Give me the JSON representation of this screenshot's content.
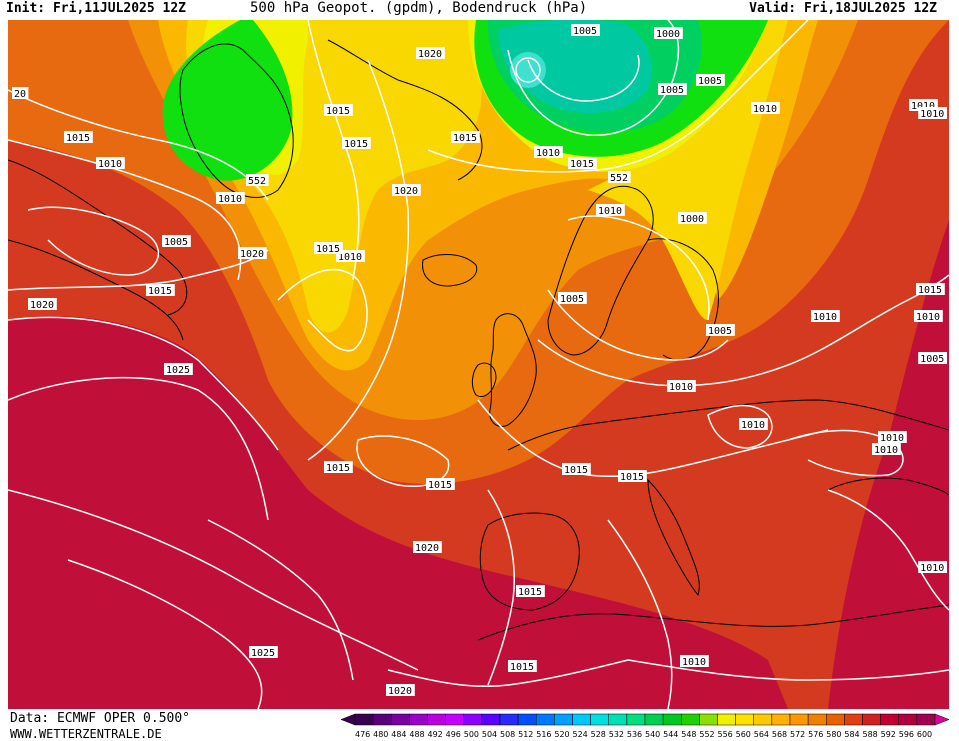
{
  "header": {
    "init": "Init: Fri,11JUL2025 12Z",
    "title": "500 hPa Geopot. (gpdm), Bodendruck (hPa)",
    "valid": "Valid: Fri,18JUL2025 12Z"
  },
  "footer": {
    "data_source": "Data: ECMWF OPER 0.500°",
    "website": "WWW.WETTERZENTRALE.DE"
  },
  "colorbar": {
    "levels": [
      "476",
      "480",
      "484",
      "488",
      "492",
      "496",
      "500",
      "504",
      "508",
      "512",
      "516",
      "520",
      "524",
      "528",
      "532",
      "536",
      "540",
      "544",
      "548",
      "552",
      "556",
      "560",
      "564",
      "568",
      "572",
      "576",
      "580",
      "584",
      "588",
      "592",
      "596",
      "600"
    ],
    "colors": [
      "#3a0050",
      "#5a007a",
      "#7a00a0",
      "#9a00c8",
      "#b800e0",
      "#c400ff",
      "#8c00ff",
      "#5a00ff",
      "#2828ff",
      "#0050ff",
      "#0078ff",
      "#00a0ff",
      "#00c8ff",
      "#00e0e0",
      "#00e0b0",
      "#00e080",
      "#00d050",
      "#00c820",
      "#20d000",
      "#8ce000",
      "#f0f000",
      "#ffe000",
      "#ffc800",
      "#ffb000",
      "#ff9800",
      "#f08000",
      "#e86000",
      "#e04010",
      "#d02020",
      "#c00030",
      "#b00040",
      "#a00050"
    ]
  },
  "map": {
    "colors": {
      "h600": "#a8003a",
      "h592": "#c0103a",
      "h584": "#d43a20",
      "h576": "#e86a10",
      "h568": "#f29008",
      "h560": "#fbb800",
      "h556": "#f8d800",
      "h552": "#f0f000",
      "h548": "#10e010",
      "h544": "#00d060",
      "h540": "#00c8a0",
      "h536": "#40e0d0",
      "isobar": "#ffffff",
      "coast": "#000000"
    },
    "isobar_labels": [
      {
        "t": "20"
      },
      {
        "t": "1015"
      },
      {
        "t": "1010"
      },
      {
        "t": "1020"
      },
      {
        "t": "1015"
      },
      {
        "t": "1015"
      },
      {
        "t": "552"
      },
      {
        "t": "1010"
      },
      {
        "t": "1020"
      },
      {
        "t": "1015"
      },
      {
        "t": "1005"
      },
      {
        "t": "1010"
      },
      {
        "t": "1020"
      },
      {
        "t": "1015"
      },
      {
        "t": "1005"
      },
      {
        "t": "1000"
      },
      {
        "t": "1005"
      },
      {
        "t": "1005"
      },
      {
        "t": "1010"
      },
      {
        "t": "1010"
      },
      {
        "t": "1015"
      },
      {
        "t": "552"
      },
      {
        "t": "1010"
      },
      {
        "t": "1000"
      },
      {
        "t": "1010"
      },
      {
        "t": "1005"
      },
      {
        "t": "1005"
      },
      {
        "t": "1015"
      },
      {
        "t": "1010"
      },
      {
        "t": "1015"
      },
      {
        "t": "1010"
      },
      {
        "t": "1005"
      },
      {
        "t": "1010"
      },
      {
        "t": "1010"
      },
      {
        "t": "1010"
      },
      {
        "t": "1010"
      },
      {
        "t": "1020"
      },
      {
        "t": "1025"
      },
      {
        "t": "1015"
      },
      {
        "t": "1015"
      },
      {
        "t": "1015"
      },
      {
        "t": "1015"
      },
      {
        "t": "1020"
      },
      {
        "t": "1015"
      },
      {
        "t": "1010"
      },
      {
        "t": "1010"
      },
      {
        "t": "1025"
      },
      {
        "t": "1020"
      },
      {
        "t": "1015"
      },
      {
        "t": "1010"
      }
    ]
  }
}
